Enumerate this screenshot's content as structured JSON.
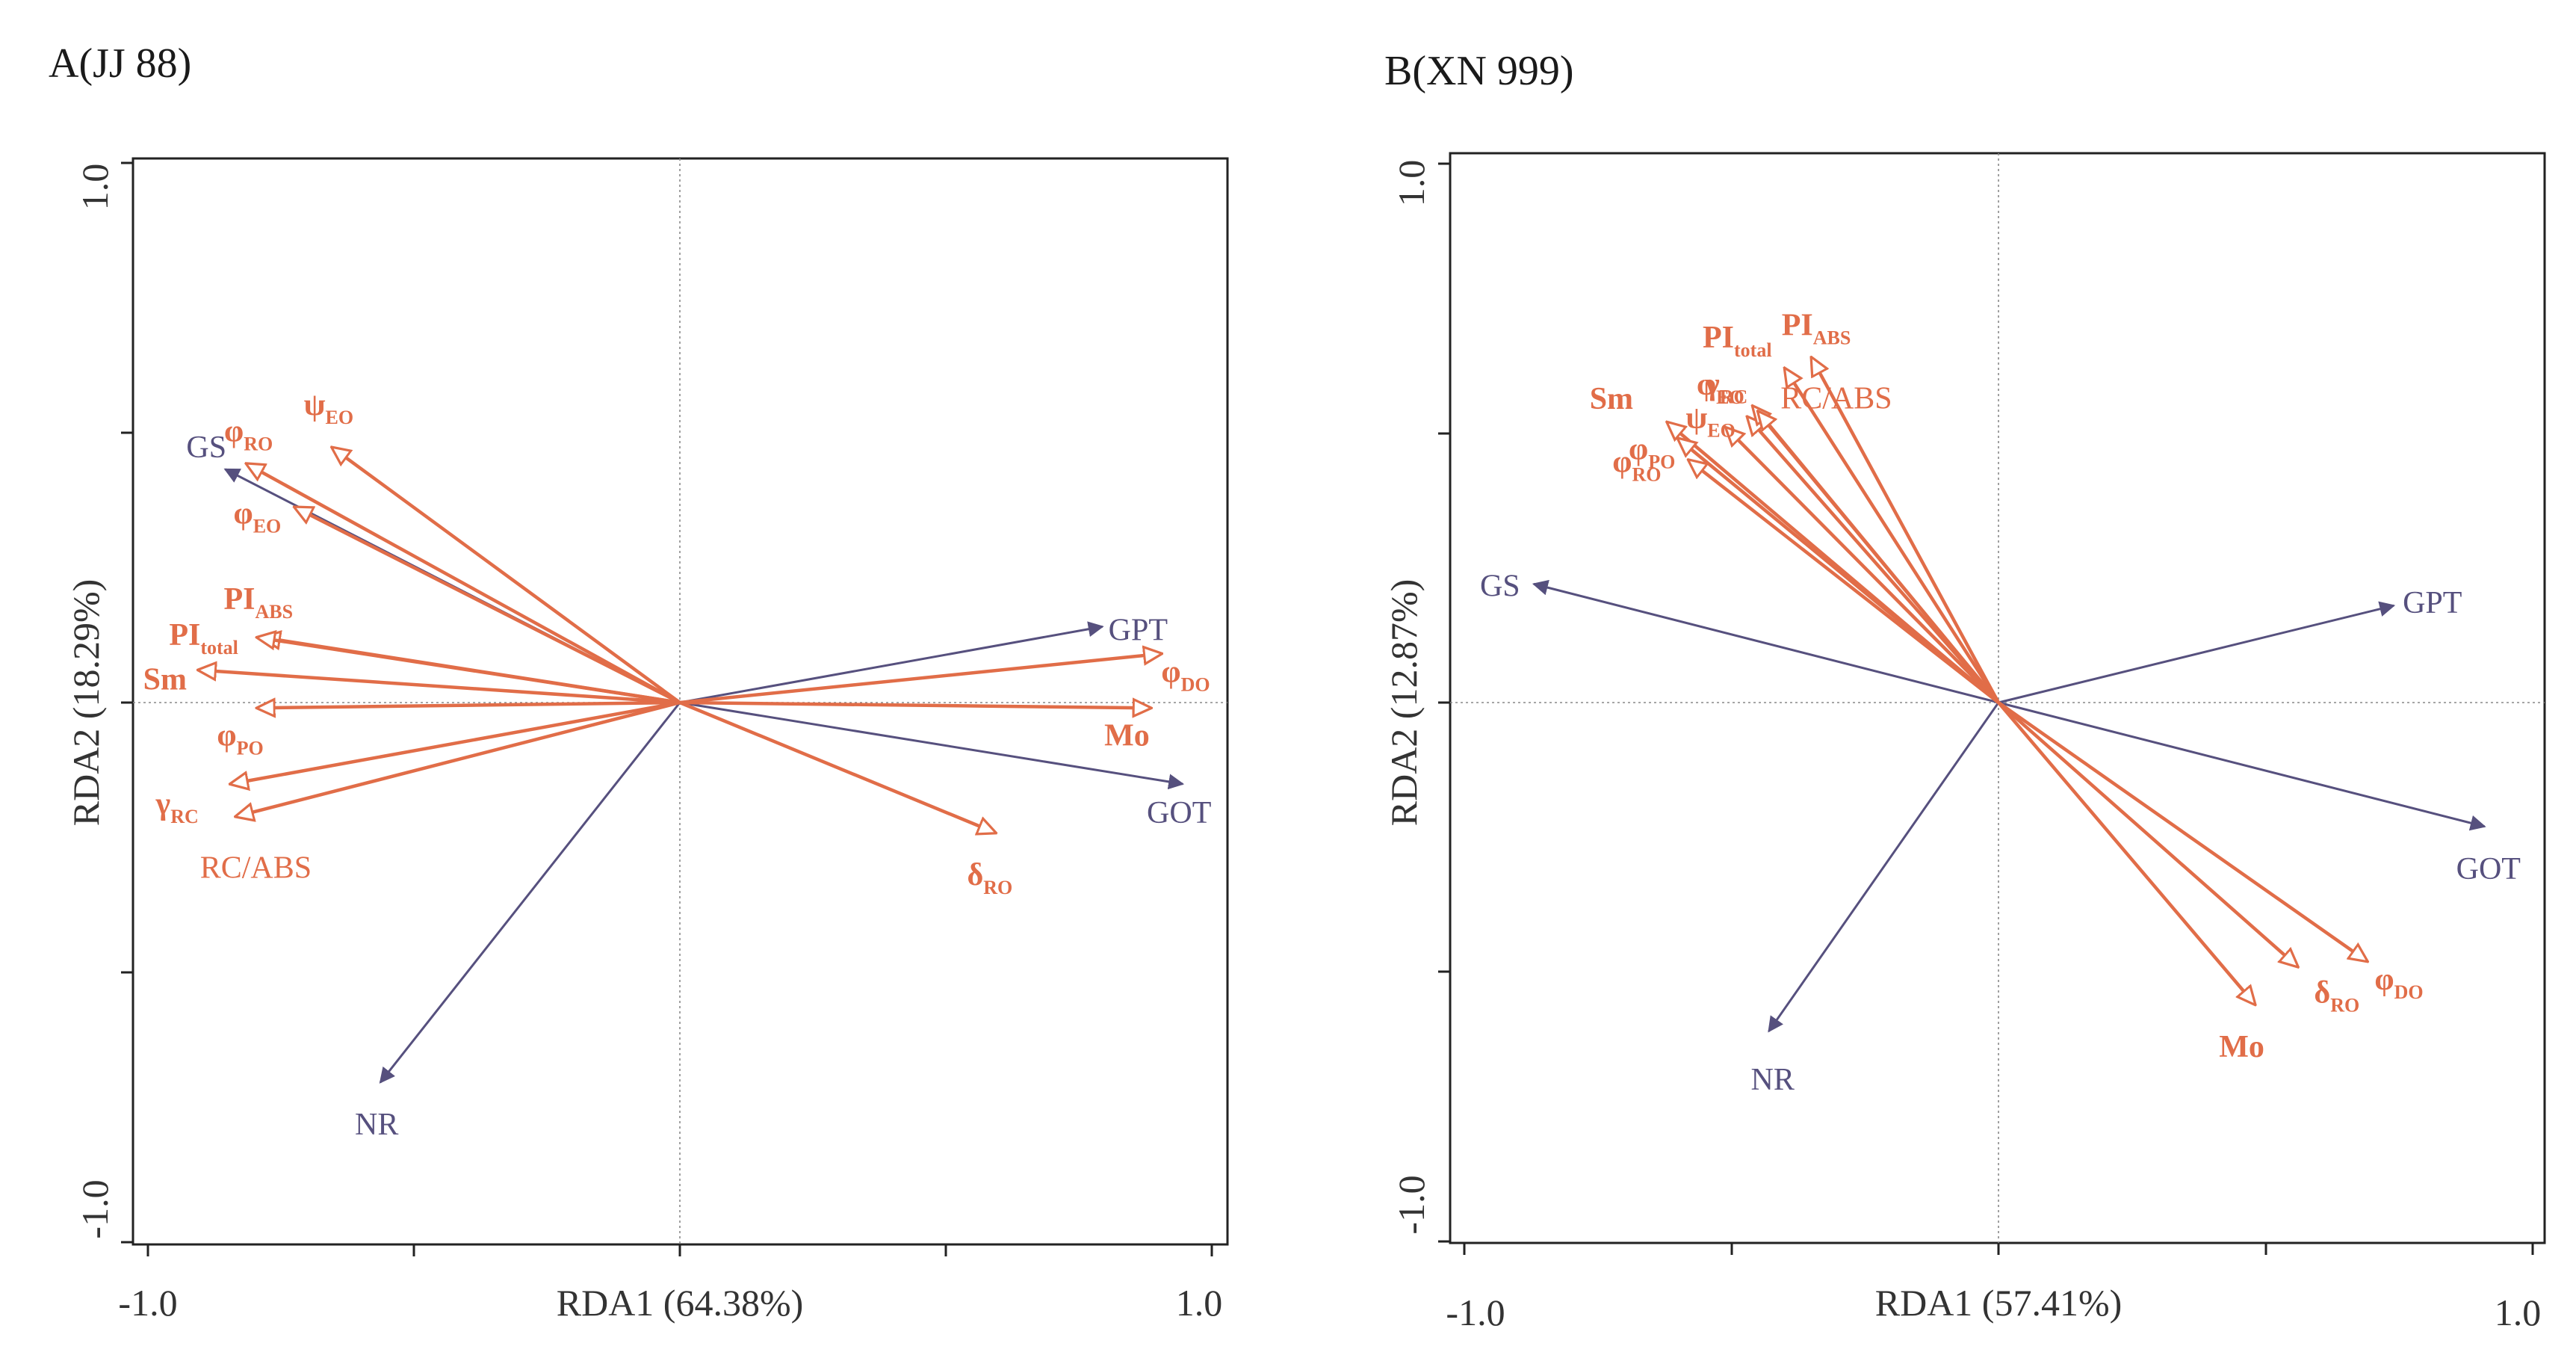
{
  "colors": {
    "response": "#56507e",
    "explanatory": "#e16d48",
    "frame": "#222222"
  },
  "chart_data": [
    {
      "type": "scatter",
      "panel": "A",
      "title": "A(JJ 88)",
      "xlabel": "RDA1 (64.38%)",
      "ylabel": "RDA2 (18.29%)",
      "xlim": [
        -1.0,
        1.0
      ],
      "ylim": [
        -1.0,
        1.0
      ],
      "xticks": [
        -1.0,
        1.0
      ],
      "yticks": [
        -1.0,
        1.0
      ],
      "xtick_labels": [
        "-1.0",
        "1.0"
      ],
      "ytick_labels": [
        "-1.0",
        "1.0"
      ],
      "response_vectors": [
        {
          "name": "GS",
          "x": -0.85,
          "y": 0.43
        },
        {
          "name": "GPT",
          "x": 0.79,
          "y": 0.14
        },
        {
          "name": "GOT",
          "x": 0.94,
          "y": -0.15
        },
        {
          "name": "NR",
          "x": -0.56,
          "y": -0.7
        }
      ],
      "explanatory_vectors": [
        {
          "name": "φRO",
          "base": "φ",
          "sub": "RO",
          "bold": true,
          "x": -0.81,
          "y": 0.44
        },
        {
          "name": "ψEO",
          "base": "ψ",
          "sub": "EO",
          "bold": true,
          "x": -0.65,
          "y": 0.47
        },
        {
          "name": "φEO",
          "base": "φ",
          "sub": "EO",
          "bold": true,
          "x": -0.72,
          "y": 0.36
        },
        {
          "name": "PIABS",
          "base": "PI",
          "sub": "ABS",
          "bold": true,
          "x": -0.78,
          "y": 0.12
        },
        {
          "name": "PItotal",
          "base": "PI",
          "sub": "total",
          "bold": true,
          "x": -0.79,
          "y": 0.12
        },
        {
          "name": "Sm",
          "base": "Sm",
          "sub": "",
          "bold": true,
          "x": -0.9,
          "y": 0.06
        },
        {
          "name": "φPO",
          "base": "φ",
          "sub": "PO",
          "bold": true,
          "x": -0.79,
          "y": -0.01
        },
        {
          "name": "γRC",
          "base": "γ",
          "sub": "RC",
          "bold": true,
          "x": -0.84,
          "y": -0.15
        },
        {
          "name": "RC/ABS",
          "base": "RC/ABS",
          "sub": "",
          "bold": false,
          "x": -0.83,
          "y": -0.21
        },
        {
          "name": "φDO",
          "base": "φ",
          "sub": "DO",
          "bold": true,
          "x": 0.9,
          "y": 0.09
        },
        {
          "name": "Mo",
          "base": "Mo",
          "sub": "",
          "bold": true,
          "x": 0.88,
          "y": -0.01
        },
        {
          "name": "δRO",
          "base": "δ",
          "sub": "RO",
          "bold": true,
          "x": 0.59,
          "y": -0.24
        }
      ]
    },
    {
      "type": "scatter",
      "panel": "B",
      "title": "B(XN 999)",
      "xlabel": "RDA1 (57.41%)",
      "ylabel": "RDA2 (12.87%)",
      "xlim": [
        -1.0,
        1.0
      ],
      "ylim": [
        -1.0,
        1.0
      ],
      "xticks": [
        -1.0,
        1.0
      ],
      "yticks": [
        -1.0,
        1.0
      ],
      "xtick_labels": [
        "-1.0",
        "1.0"
      ],
      "ytick_labels": [
        "-1.0",
        "1.0"
      ],
      "response_vectors": [
        {
          "name": "GS",
          "x": -0.87,
          "y": 0.22
        },
        {
          "name": "GPT",
          "x": 0.74,
          "y": 0.18
        },
        {
          "name": "GOT",
          "x": 0.91,
          "y": -0.23
        },
        {
          "name": "NR",
          "x": -0.43,
          "y": -0.61
        }
      ],
      "explanatory_vectors": [
        {
          "name": "PItotal",
          "base": "PI",
          "sub": "total",
          "bold": true,
          "x": -0.4,
          "y": 0.62
        },
        {
          "name": "PIABS",
          "base": "PI",
          "sub": "ABS",
          "bold": true,
          "x": -0.35,
          "y": 0.64
        },
        {
          "name": "φEO",
          "base": "φ",
          "sub": "EO",
          "bold": true,
          "x": -0.47,
          "y": 0.53
        },
        {
          "name": "γRC",
          "base": "γ",
          "sub": "RC",
          "bold": true,
          "x": -0.46,
          "y": 0.55
        },
        {
          "name": "RC/ABS",
          "base": "RC/ABS",
          "sub": "",
          "bold": false,
          "x": -0.45,
          "y": 0.54
        },
        {
          "name": "Sm",
          "base": "Sm",
          "sub": "",
          "bold": true,
          "x": -0.62,
          "y": 0.52
        },
        {
          "name": "ψEO",
          "base": "ψ",
          "sub": "EO",
          "bold": true,
          "x": -0.51,
          "y": 0.51
        },
        {
          "name": "φPO",
          "base": "φ",
          "sub": "PO",
          "bold": true,
          "x": -0.6,
          "y": 0.49
        },
        {
          "name": "φRO",
          "base": "φ",
          "sub": "RO",
          "bold": true,
          "x": -0.58,
          "y": 0.45
        },
        {
          "name": "Mo",
          "base": "Mo",
          "sub": "",
          "bold": true,
          "x": 0.48,
          "y": -0.56
        },
        {
          "name": "δRO",
          "base": "δ",
          "sub": "RO",
          "bold": true,
          "x": 0.56,
          "y": -0.49
        },
        {
          "name": "φDO",
          "base": "φ",
          "sub": "DO",
          "bold": true,
          "x": 0.69,
          "y": -0.48
        }
      ]
    }
  ]
}
